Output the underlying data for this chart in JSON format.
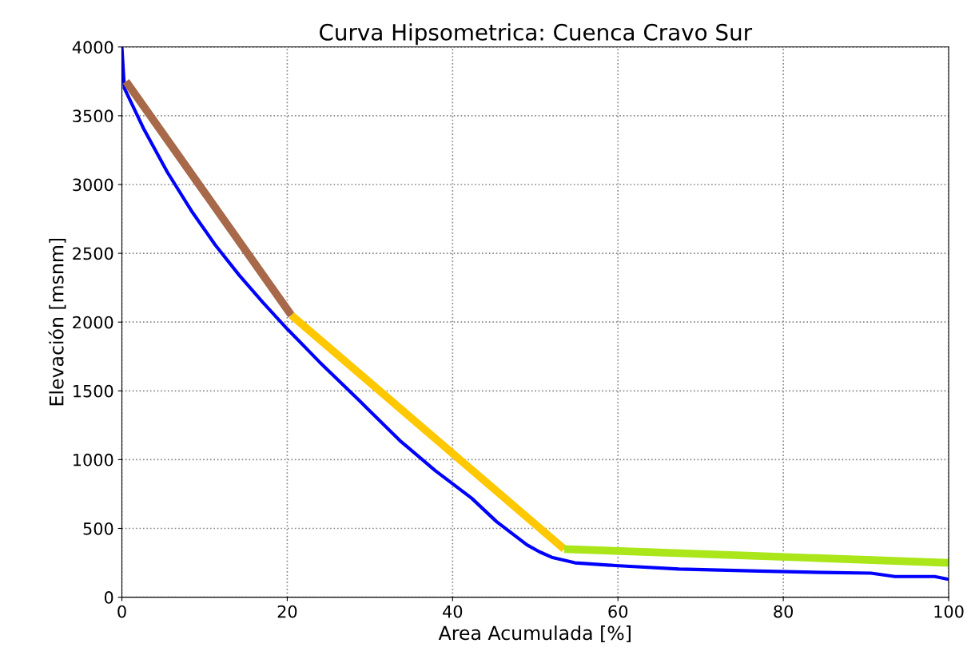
{
  "chart_data": {
    "type": "line",
    "title": "Curva Hipsometrica: Cuenca Cravo Sur",
    "xlabel": "Area Acumulada [%]",
    "ylabel": "Elevación [msnm]",
    "xlim": [
      0,
      100
    ],
    "ylim": [
      0,
      4000
    ],
    "xticks": [
      0,
      20,
      40,
      60,
      80,
      100
    ],
    "yticks": [
      0,
      500,
      1000,
      1500,
      2000,
      2500,
      3000,
      3500,
      4000
    ],
    "grid": true,
    "line_style": "solid",
    "marker": "none",
    "series": [
      {
        "color": "#0000ff",
        "x": [
          0,
          0.3,
          2.6,
          5.5,
          8.4,
          11.3,
          14.2,
          17.1,
          20,
          23.9,
          28.7,
          33.6,
          37.9,
          42.3,
          45.3,
          49,
          50.5,
          52,
          54.8,
          59.7,
          67.4,
          77,
          84.8,
          90.6,
          93.5,
          98.3,
          100
        ],
        "values": [
          4000,
          3700,
          3410,
          3090,
          2810,
          2560,
          2340,
          2140,
          1950,
          1710,
          1430,
          1140,
          920,
          720,
          550,
          380,
          330,
          290,
          250,
          230,
          205,
          190,
          180,
          175,
          150,
          150,
          130
        ]
      },
      {
        "color": "#a8694a",
        "x": [
          0.5,
          20.5
        ],
        "values": [
          3750,
          2050
        ]
      },
      {
        "color": "#ffc800",
        "x": [
          20.5,
          53.5
        ],
        "values": [
          2050,
          350
        ]
      },
      {
        "color": "#aae61a",
        "x": [
          53.5,
          100
        ],
        "values": [
          350,
          250
        ]
      }
    ]
  }
}
